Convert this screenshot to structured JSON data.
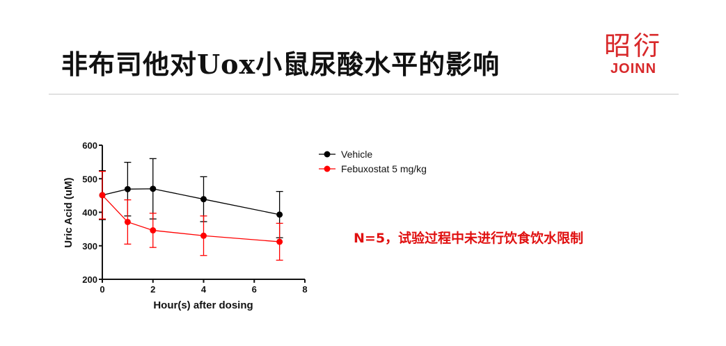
{
  "slide": {
    "title": "非布司他对Uox小鼠尿酸水平的影响",
    "note": "N=5，试验过程中未进行饮食饮水限制",
    "logo": {
      "chinese": "昭衍",
      "english": "JOINN",
      "color": "#d8282a"
    }
  },
  "chart_data": {
    "type": "line",
    "xlabel": "Hour(s) after dosing",
    "ylabel": "Uric Acid (uM)",
    "xlim": [
      0,
      8
    ],
    "ylim": [
      200,
      600
    ],
    "xticks": [
      "0",
      "2",
      "4",
      "6",
      "8"
    ],
    "yticks": [
      "200",
      "300",
      "400",
      "500",
      "600"
    ],
    "grid": false,
    "legend": "top-right",
    "x": [
      0,
      1,
      2,
      4,
      7
    ],
    "series": [
      {
        "name": "Vehicle",
        "color": "#000000",
        "values": [
          451,
          469,
          470,
          439,
          393
        ],
        "error": [
          73,
          80,
          90,
          67,
          69
        ]
      },
      {
        "name": "Febuxostat 5 mg/kg",
        "color": "#ff0000",
        "values": [
          451,
          371,
          346,
          330,
          312
        ],
        "error": [
          71,
          66,
          51,
          59,
          55
        ]
      }
    ]
  }
}
